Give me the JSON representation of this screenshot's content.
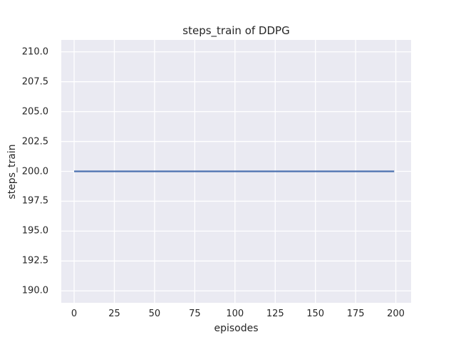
{
  "figure": {
    "background_color": "#FFFFFF"
  },
  "chart_data": {
    "type": "line",
    "title": "steps_train of DDPG",
    "xlabel": "episodes",
    "ylabel": "steps_train",
    "x_tick_values": [
      0,
      25,
      50,
      75,
      100,
      125,
      150,
      175,
      200
    ],
    "x_tick_labels": [
      "0",
      "25",
      "50",
      "75",
      "100",
      "125",
      "150",
      "175",
      "200"
    ],
    "y_tick_values": [
      210.0,
      207.5,
      205.0,
      202.5,
      200.0,
      197.5,
      195.0,
      192.5,
      190.0
    ],
    "y_tick_labels": [
      "210.0",
      "207.5",
      "205.0",
      "202.5",
      "200.0",
      "197.5",
      "195.0",
      "192.5",
      "190.0"
    ],
    "xlim": [
      -8,
      209.5
    ],
    "ylim": [
      189.0,
      211.0
    ],
    "grid": true,
    "legend": false,
    "plot_bg_color": "#EAEAF2",
    "grid_color": "#FFFFFF",
    "text_color": "#262626",
    "line_width": 2.2,
    "grid_line_width": 1.3,
    "series": [
      {
        "name": "steps_train",
        "color": "#4C72B0",
        "x": [
          0,
          199
        ],
        "values": [
          200,
          200
        ]
      }
    ]
  }
}
